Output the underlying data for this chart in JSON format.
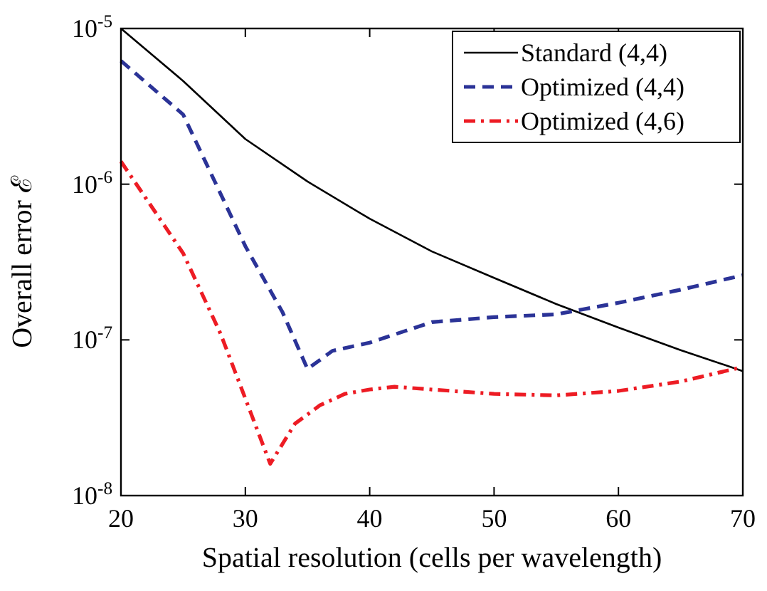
{
  "chart_data": {
    "type": "line",
    "xlabel": "Spatial resolution (cells per wavelength)",
    "ylabel": "Overall error ℰ",
    "log": "y",
    "xlim": [
      20,
      70
    ],
    "xticks": [
      20,
      30,
      40,
      50,
      60,
      70
    ],
    "ylim": [
      1e-08,
      1e-05
    ],
    "yticks": [
      {
        "value": 1e-08,
        "label": "10$^{-8}$"
      },
      {
        "value": 1e-07,
        "label": "10$^{-7}$"
      },
      {
        "value": 1e-06,
        "label": "10$^{-6}$"
      },
      {
        "value": 1e-05,
        "label": "10$^{-5}$"
      }
    ],
    "legend": "top right",
    "grid": false,
    "series": [
      {
        "name": "Standard (4,4)",
        "color": "#000000",
        "line_style": "solid",
        "x": [
          20,
          25,
          30,
          35,
          40,
          45,
          50,
          55,
          60,
          65,
          70
        ],
        "values": [
          1e-05,
          4.6e-06,
          1.95e-06,
          1.04e-06,
          6e-07,
          3.7e-07,
          2.5e-07,
          1.7e-07,
          1.2e-07,
          8.6e-08,
          6.3e-08
        ]
      },
      {
        "name": "Optimized (4,4)",
        "color": "#2b3397",
        "line_style": "dashed",
        "x": [
          20,
          25,
          30,
          33,
          35,
          37,
          40,
          45,
          50,
          55,
          60,
          65,
          70
        ],
        "values": [
          6.2e-06,
          2.8e-06,
          4e-07,
          1.5e-07,
          6.5e-08,
          8.5e-08,
          9.6e-08,
          1.3e-07,
          1.4e-07,
          1.46e-07,
          1.73e-07,
          2.1e-07,
          2.6e-07
        ]
      },
      {
        "name": "Optimized (4,6)",
        "color": "#ed1c24",
        "line_style": "dashdot",
        "x": [
          20,
          25,
          28,
          30,
          32,
          34,
          36,
          38,
          40,
          42,
          45,
          50,
          55,
          60,
          65,
          70
        ],
        "values": [
          1.4e-06,
          3.6e-07,
          1.1e-07,
          4.2e-08,
          1.6e-08,
          2.9e-08,
          3.8e-08,
          4.5e-08,
          4.8e-08,
          5e-08,
          4.8e-08,
          4.5e-08,
          4.4e-08,
          4.7e-08,
          5.4e-08,
          6.7e-08
        ]
      }
    ]
  }
}
